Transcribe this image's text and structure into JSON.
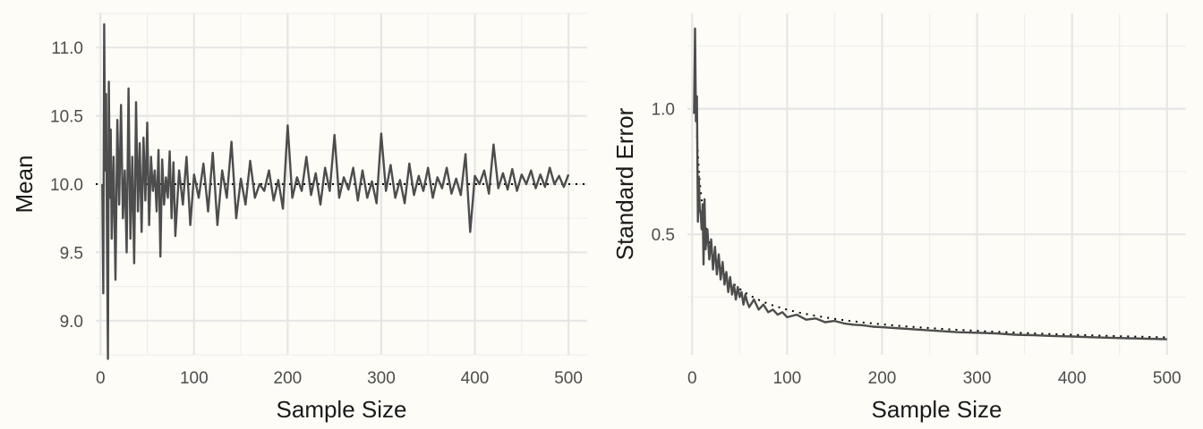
{
  "chart_data": [
    {
      "type": "line",
      "xlabel": "Sample Size",
      "ylabel": "Mean",
      "xlim": [
        -5,
        520
      ],
      "ylim": [
        8.75,
        11.25
      ],
      "x_ticks": [
        0,
        100,
        200,
        300,
        400,
        500
      ],
      "x_tick_labels": [
        "0",
        "100",
        "200",
        "300",
        "400",
        "500"
      ],
      "y_ticks": [
        9.0,
        9.5,
        10.0,
        10.5,
        11.0
      ],
      "y_tick_labels": [
        "9.0",
        "9.5",
        "10.0",
        "10.5",
        "11.0"
      ],
      "grid": true,
      "series": [
        {
          "x": [
            2,
            3,
            4,
            5,
            6,
            7,
            8,
            9,
            10,
            11,
            12,
            14,
            16,
            18,
            20,
            22,
            24,
            26,
            28,
            30,
            32,
            34,
            36,
            38,
            40,
            42,
            44,
            46,
            48,
            50,
            52,
            54,
            56,
            58,
            60,
            62,
            64,
            66,
            68,
            70,
            72,
            74,
            76,
            78,
            80,
            84,
            88,
            92,
            96,
            100,
            105,
            110,
            115,
            120,
            125,
            130,
            135,
            140,
            145,
            150,
            155,
            160,
            165,
            170,
            175,
            180,
            185,
            190,
            195,
            200,
            205,
            210,
            215,
            220,
            225,
            230,
            235,
            240,
            245,
            250,
            255,
            260,
            265,
            270,
            275,
            280,
            285,
            290,
            295,
            300,
            305,
            310,
            315,
            320,
            325,
            330,
            335,
            340,
            345,
            350,
            355,
            360,
            365,
            370,
            375,
            380,
            385,
            390,
            395,
            400,
            405,
            410,
            415,
            420,
            425,
            430,
            435,
            440,
            445,
            450,
            455,
            460,
            465,
            470,
            475,
            480,
            485,
            490,
            495,
            500
          ],
          "y": [
            10.0,
            9.2,
            11.17,
            10.1,
            10.66,
            9.6,
            8.72,
            10.75,
            9.9,
            10.4,
            9.6,
            10.2,
            9.3,
            10.47,
            9.85,
            10.58,
            9.75,
            10.1,
            9.5,
            10.7,
            9.6,
            10.2,
            9.42,
            10.6,
            9.8,
            10.3,
            9.65,
            10.34,
            9.88,
            10.45,
            9.7,
            10.2,
            9.95,
            10.1,
            9.8,
            10.25,
            9.47,
            10.18,
            9.85,
            10.05,
            9.9,
            10.24,
            9.75,
            10.16,
            9.62,
            10.1,
            9.85,
            10.2,
            9.7,
            10.07,
            9.9,
            10.15,
            9.8,
            10.23,
            9.7,
            10.1,
            9.9,
            10.31,
            9.75,
            10.04,
            9.85,
            10.17,
            9.9,
            10.0,
            9.95,
            10.1,
            9.88,
            10.03,
            9.82,
            10.43,
            9.9,
            10.05,
            9.95,
            10.2,
            9.92,
            10.08,
            9.85,
            10.12,
            9.95,
            10.36,
            9.9,
            10.05,
            9.96,
            10.12,
            9.88,
            10.1,
            9.9,
            10.02,
            9.86,
            10.37,
            9.95,
            10.14,
            9.9,
            10.03,
            9.86,
            10.15,
            9.92,
            10.06,
            9.95,
            10.12,
            9.9,
            10.05,
            9.97,
            10.12,
            9.93,
            10.04,
            9.92,
            10.22,
            9.65,
            10.06,
            10.0,
            10.1,
            9.93,
            10.29,
            9.97,
            10.08,
            9.96,
            10.11,
            9.95,
            10.07,
            10.0,
            10.1,
            9.97,
            10.07,
            9.98,
            10.12,
            10.0,
            10.06,
            9.98,
            10.07
          ]
        }
      ],
      "reference_line": {
        "y": 10.0
      }
    },
    {
      "type": "line",
      "xlabel": "Sample Size",
      "ylabel": "Standard Error",
      "xlim": [
        -5,
        520
      ],
      "ylim": [
        0.02,
        1.38
      ],
      "x_ticks": [
        0,
        100,
        200,
        300,
        400,
        500
      ],
      "x_tick_labels": [
        "0",
        "100",
        "200",
        "300",
        "400",
        "500"
      ],
      "y_ticks": [
        0.5,
        1.0
      ],
      "y_tick_labels": [
        "0.5",
        "1.0"
      ],
      "grid": true,
      "series": [
        {
          "x": [
            2,
            3,
            4,
            5,
            6,
            7,
            8,
            9,
            10,
            11,
            12,
            13,
            14,
            16,
            18,
            20,
            22,
            24,
            26,
            28,
            30,
            32,
            34,
            36,
            38,
            40,
            42,
            44,
            46,
            48,
            50,
            52,
            54,
            56,
            58,
            60,
            65,
            70,
            75,
            80,
            85,
            90,
            95,
            100,
            110,
            120,
            130,
            140,
            150,
            160,
            170,
            180,
            190,
            200,
            220,
            240,
            260,
            280,
            300,
            320,
            340,
            360,
            380,
            400,
            420,
            440,
            460,
            480,
            500
          ],
          "y": [
            0.98,
            1.32,
            0.95,
            1.05,
            0.55,
            0.73,
            0.6,
            0.58,
            0.52,
            0.62,
            0.38,
            0.64,
            0.44,
            0.52,
            0.4,
            0.48,
            0.36,
            0.45,
            0.34,
            0.42,
            0.32,
            0.39,
            0.3,
            0.35,
            0.27,
            0.33,
            0.26,
            0.3,
            0.24,
            0.29,
            0.25,
            0.27,
            0.22,
            0.26,
            0.23,
            0.21,
            0.24,
            0.2,
            0.22,
            0.19,
            0.2,
            0.18,
            0.19,
            0.17,
            0.18,
            0.16,
            0.165,
            0.15,
            0.155,
            0.145,
            0.14,
            0.138,
            0.132,
            0.13,
            0.125,
            0.12,
            0.115,
            0.11,
            0.108,
            0.105,
            0.1,
            0.098,
            0.095,
            0.093,
            0.09,
            0.088,
            0.086,
            0.084,
            0.082
          ]
        }
      ],
      "reference_curve": {
        "formula": "2 / sqrt(n)",
        "x_from": 5,
        "x_to": 500
      }
    }
  ]
}
